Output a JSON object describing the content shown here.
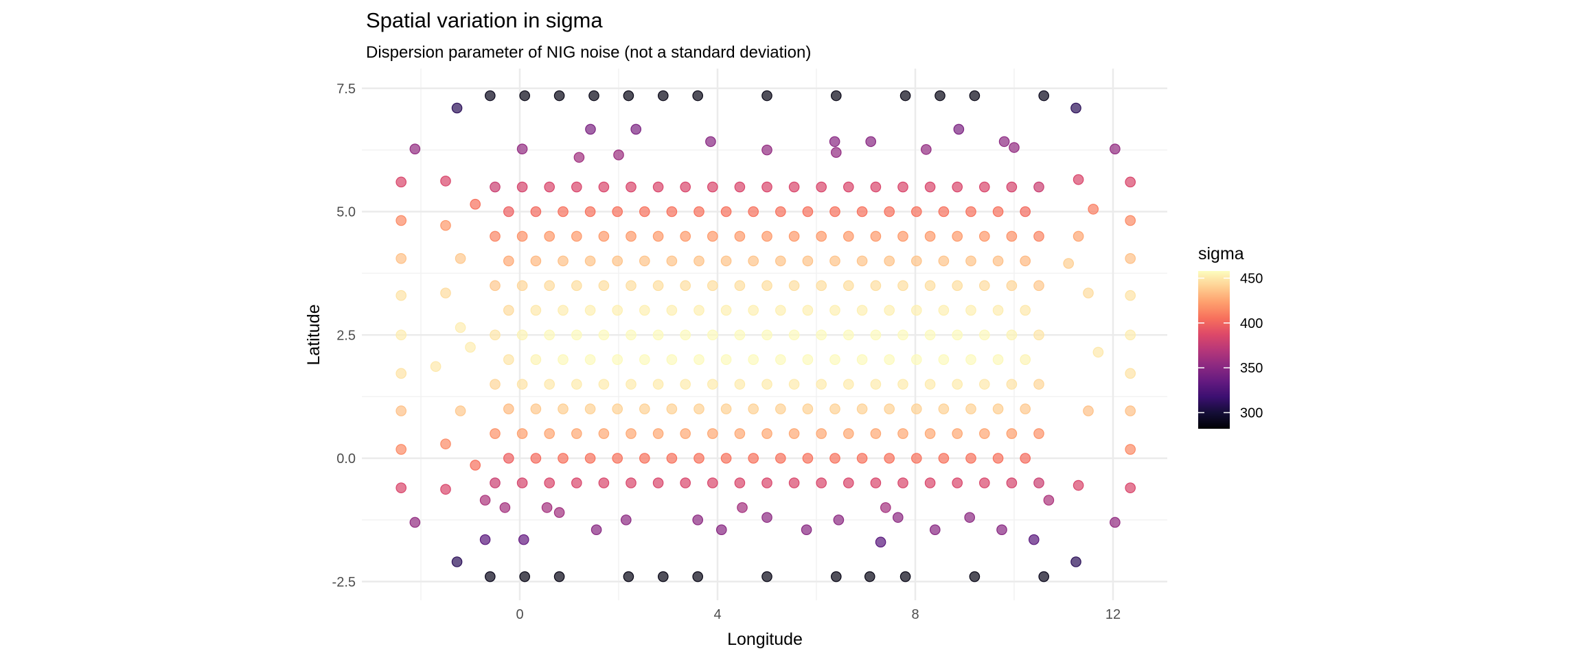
{
  "chart_data": {
    "type": "scatter",
    "title": "Spatial variation in sigma",
    "subtitle": "Dispersion parameter of NIG noise (not a standard deviation)",
    "xlabel": "Longitude",
    "ylabel": "Latitude",
    "xlim": [
      -2.7,
      13.1
    ],
    "ylim": [
      -2.9,
      8.0
    ],
    "xticks": [
      0,
      4,
      8,
      12
    ],
    "xtick_labels": [
      "0",
      "4",
      "8",
      "12"
    ],
    "yticks": [
      -2.5,
      0,
      2.5,
      5,
      7.5
    ],
    "ytick_labels": [
      "-2.5",
      "0.0",
      "2.5",
      "5.0",
      "7.5"
    ],
    "grid": true,
    "legend": {
      "title": "sigma",
      "position": "right",
      "colormap": "magma",
      "range": [
        282,
        458
      ],
      "ticks": [
        300,
        350,
        400,
        450
      ],
      "tick_labels": [
        "300",
        "350",
        "400",
        "450"
      ]
    },
    "outer_points": [
      [
        -0.6,
        7.35,
        290
      ],
      [
        0.1,
        7.35,
        288
      ],
      [
        0.8,
        7.35,
        288
      ],
      [
        1.5,
        7.35,
        288
      ],
      [
        2.2,
        7.35,
        288
      ],
      [
        2.9,
        7.35,
        288
      ],
      [
        3.6,
        7.35,
        288
      ],
      [
        5.0,
        7.35,
        288
      ],
      [
        6.4,
        7.35,
        288
      ],
      [
        7.8,
        7.35,
        288
      ],
      [
        8.5,
        7.35,
        288
      ],
      [
        9.2,
        7.35,
        288
      ],
      [
        10.6,
        7.35,
        290
      ],
      [
        -1.27,
        7.1,
        310
      ],
      [
        11.25,
        7.1,
        310
      ],
      [
        1.43,
        6.67,
        345
      ],
      [
        2.35,
        6.67,
        345
      ],
      [
        8.88,
        6.67,
        345
      ],
      [
        3.86,
        6.42,
        350
      ],
      [
        6.37,
        6.42,
        350
      ],
      [
        5.0,
        6.25,
        355
      ],
      [
        6.4,
        6.2,
        355
      ],
      [
        8.22,
        6.26,
        355
      ],
      [
        7.1,
        6.42,
        350
      ],
      [
        9.8,
        6.42,
        352
      ],
      [
        -2.12,
        6.27,
        355
      ],
      [
        0.05,
        6.27,
        355
      ],
      [
        10.0,
        6.3,
        355
      ],
      [
        12.04,
        6.27,
        355
      ],
      [
        1.2,
        6.1,
        360
      ],
      [
        2.0,
        6.15,
        358
      ],
      [
        -2.4,
        5.6,
        385
      ],
      [
        -2.4,
        4.82,
        415
      ],
      [
        -2.4,
        4.05,
        435
      ],
      [
        -2.4,
        3.3,
        448
      ],
      [
        -2.4,
        2.5,
        452
      ],
      [
        -2.4,
        1.72,
        448
      ],
      [
        -2.4,
        0.96,
        435
      ],
      [
        -2.4,
        0.18,
        415
      ],
      [
        -2.4,
        -0.6,
        385
      ],
      [
        12.35,
        5.6,
        385
      ],
      [
        12.35,
        4.82,
        415
      ],
      [
        12.35,
        4.05,
        435
      ],
      [
        12.35,
        3.3,
        448
      ],
      [
        12.35,
        2.5,
        452
      ],
      [
        12.35,
        1.72,
        448
      ],
      [
        12.35,
        0.96,
        435
      ],
      [
        12.35,
        0.18,
        415
      ],
      [
        12.35,
        -0.6,
        385
      ],
      [
        -1.5,
        5.62,
        385
      ],
      [
        -1.5,
        4.72,
        420
      ],
      [
        -1.5,
        3.35,
        445
      ],
      [
        -1.5,
        0.29,
        415
      ],
      [
        -1.5,
        -0.63,
        385
      ],
      [
        -1.2,
        4.05,
        438
      ],
      [
        -1.2,
        2.65,
        452
      ],
      [
        -1.2,
        0.96,
        438
      ],
      [
        -0.9,
        5.15,
        405
      ],
      [
        -0.9,
        -0.14,
        405
      ],
      [
        -1.7,
        1.86,
        450
      ],
      [
        -1.0,
        2.25,
        452
      ],
      [
        11.3,
        5.65,
        385
      ],
      [
        11.3,
        4.5,
        425
      ],
      [
        11.5,
        3.35,
        445
      ],
      [
        11.7,
        2.15,
        450
      ],
      [
        11.5,
        0.96,
        435
      ],
      [
        11.3,
        -0.55,
        385
      ],
      [
        11.6,
        5.05,
        410
      ],
      [
        11.1,
        3.95,
        440
      ],
      [
        -0.6,
        -2.4,
        290
      ],
      [
        0.1,
        -2.4,
        288
      ],
      [
        0.8,
        -2.4,
        288
      ],
      [
        2.2,
        -2.4,
        288
      ],
      [
        2.9,
        -2.4,
        288
      ],
      [
        3.6,
        -2.4,
        288
      ],
      [
        5.0,
        -2.4,
        288
      ],
      [
        6.4,
        -2.4,
        288
      ],
      [
        7.08,
        -2.4,
        288
      ],
      [
        7.8,
        -2.4,
        288
      ],
      [
        9.2,
        -2.4,
        288
      ],
      [
        10.6,
        -2.4,
        290
      ],
      [
        -1.27,
        -2.1,
        310
      ],
      [
        11.25,
        -2.1,
        310
      ],
      [
        -0.7,
        -1.65,
        330
      ],
      [
        0.08,
        -1.65,
        335
      ],
      [
        10.4,
        -1.65,
        330
      ],
      [
        7.3,
        -1.7,
        330
      ],
      [
        -2.12,
        -1.3,
        355
      ],
      [
        12.04,
        -1.3,
        355
      ],
      [
        1.55,
        -1.45,
        350
      ],
      [
        2.15,
        -1.25,
        352
      ],
      [
        3.6,
        -1.25,
        352
      ],
      [
        4.08,
        -1.45,
        350
      ],
      [
        5.8,
        -1.45,
        350
      ],
      [
        6.45,
        -1.25,
        352
      ],
      [
        8.4,
        -1.45,
        350
      ],
      [
        9.1,
        -1.2,
        352
      ],
      [
        9.75,
        -1.45,
        350
      ],
      [
        5.0,
        -1.2,
        352
      ],
      [
        7.65,
        -1.2,
        352
      ],
      [
        0.8,
        -1.1,
        360
      ],
      [
        -0.3,
        -1.0,
        362
      ],
      [
        0.55,
        -1.0,
        362
      ],
      [
        4.5,
        -1.0,
        362
      ],
      [
        7.4,
        -1.0,
        362
      ],
      [
        10.7,
        -0.85,
        365
      ],
      [
        -0.7,
        -0.85,
        365
      ]
    ],
    "interior_x": [
      -0.5,
      0.05,
      0.6,
      1.15,
      1.7,
      2.25,
      2.8,
      3.35,
      3.9,
      4.45,
      5.0,
      5.55,
      6.1,
      6.65,
      7.2,
      7.75,
      8.3,
      8.85,
      9.4,
      9.95,
      10.5
    ],
    "interior_rows": [
      {
        "y": 5.5,
        "x_shift": 0,
        "sigma": [
          378,
          383,
          385,
          385,
          385,
          385,
          385,
          385,
          385,
          385,
          385,
          385,
          385,
          385,
          385,
          385,
          385,
          385,
          385,
          383,
          378
        ]
      },
      {
        "y": 5.0,
        "x_shift": 0.275,
        "sigma": [
          398,
          402,
          405,
          405,
          405,
          405,
          405,
          405,
          405,
          405,
          405,
          405,
          405,
          405,
          405,
          405,
          405,
          405,
          405,
          402,
          398
        ]
      },
      {
        "y": 4.5,
        "x_shift": 0,
        "sigma": [
          413,
          418,
          420,
          421,
          421,
          421,
          421,
          421,
          421,
          421,
          421,
          421,
          421,
          421,
          421,
          421,
          421,
          421,
          420,
          418,
          413
        ]
      },
      {
        "y": 4.0,
        "x_shift": 0.275,
        "sigma": [
          427,
          432,
          435,
          436,
          436,
          436,
          436,
          436,
          436,
          436,
          436,
          436,
          436,
          436,
          436,
          436,
          436,
          436,
          435,
          432,
          427
        ]
      },
      {
        "y": 3.5,
        "x_shift": 0,
        "sigma": [
          438,
          443,
          445,
          446,
          446,
          446,
          446,
          446,
          446,
          446,
          446,
          446,
          446,
          446,
          446,
          446,
          446,
          446,
          445,
          443,
          438
        ]
      },
      {
        "y": 3.0,
        "x_shift": 0.275,
        "sigma": [
          445,
          450,
          452,
          453,
          453,
          453,
          453,
          453,
          453,
          453,
          453,
          453,
          453,
          453,
          453,
          453,
          453,
          453,
          452,
          450,
          445
        ]
      },
      {
        "y": 2.5,
        "x_shift": 0,
        "sigma": [
          449,
          454,
          456,
          457,
          457,
          457,
          457,
          457,
          457,
          457,
          457,
          457,
          457,
          457,
          457,
          457,
          457,
          457,
          456,
          454,
          449
        ]
      },
      {
        "y": 2.0,
        "x_shift": 0.275,
        "sigma": [
          449,
          454,
          456,
          457,
          457,
          457,
          457,
          457,
          457,
          457,
          457,
          457,
          457,
          457,
          457,
          457,
          457,
          457,
          456,
          454,
          449
        ]
      },
      {
        "y": 1.5,
        "x_shift": 0,
        "sigma": [
          443,
          448,
          450,
          451,
          451,
          451,
          451,
          451,
          451,
          451,
          451,
          451,
          451,
          451,
          451,
          451,
          451,
          451,
          450,
          448,
          443
        ]
      },
      {
        "y": 1.0,
        "x_shift": 0.275,
        "sigma": [
          433,
          438,
          440,
          441,
          441,
          441,
          441,
          441,
          441,
          441,
          441,
          441,
          441,
          441,
          441,
          441,
          441,
          441,
          440,
          438,
          433
        ]
      },
      {
        "y": 0.5,
        "x_shift": 0,
        "sigma": [
          418,
          423,
          425,
          426,
          426,
          426,
          426,
          426,
          426,
          426,
          426,
          426,
          426,
          426,
          426,
          426,
          426,
          426,
          425,
          423,
          418
        ]
      },
      {
        "y": 0.0,
        "x_shift": 0.275,
        "sigma": [
          398,
          403,
          405,
          406,
          406,
          406,
          406,
          406,
          406,
          406,
          406,
          406,
          406,
          406,
          406,
          406,
          406,
          406,
          405,
          403,
          398
        ]
      },
      {
        "y": -0.5,
        "x_shift": 0,
        "sigma": [
          378,
          383,
          385,
          385,
          385,
          385,
          385,
          385,
          385,
          385,
          385,
          385,
          385,
          385,
          385,
          385,
          385,
          385,
          385,
          383,
          378
        ]
      }
    ]
  }
}
